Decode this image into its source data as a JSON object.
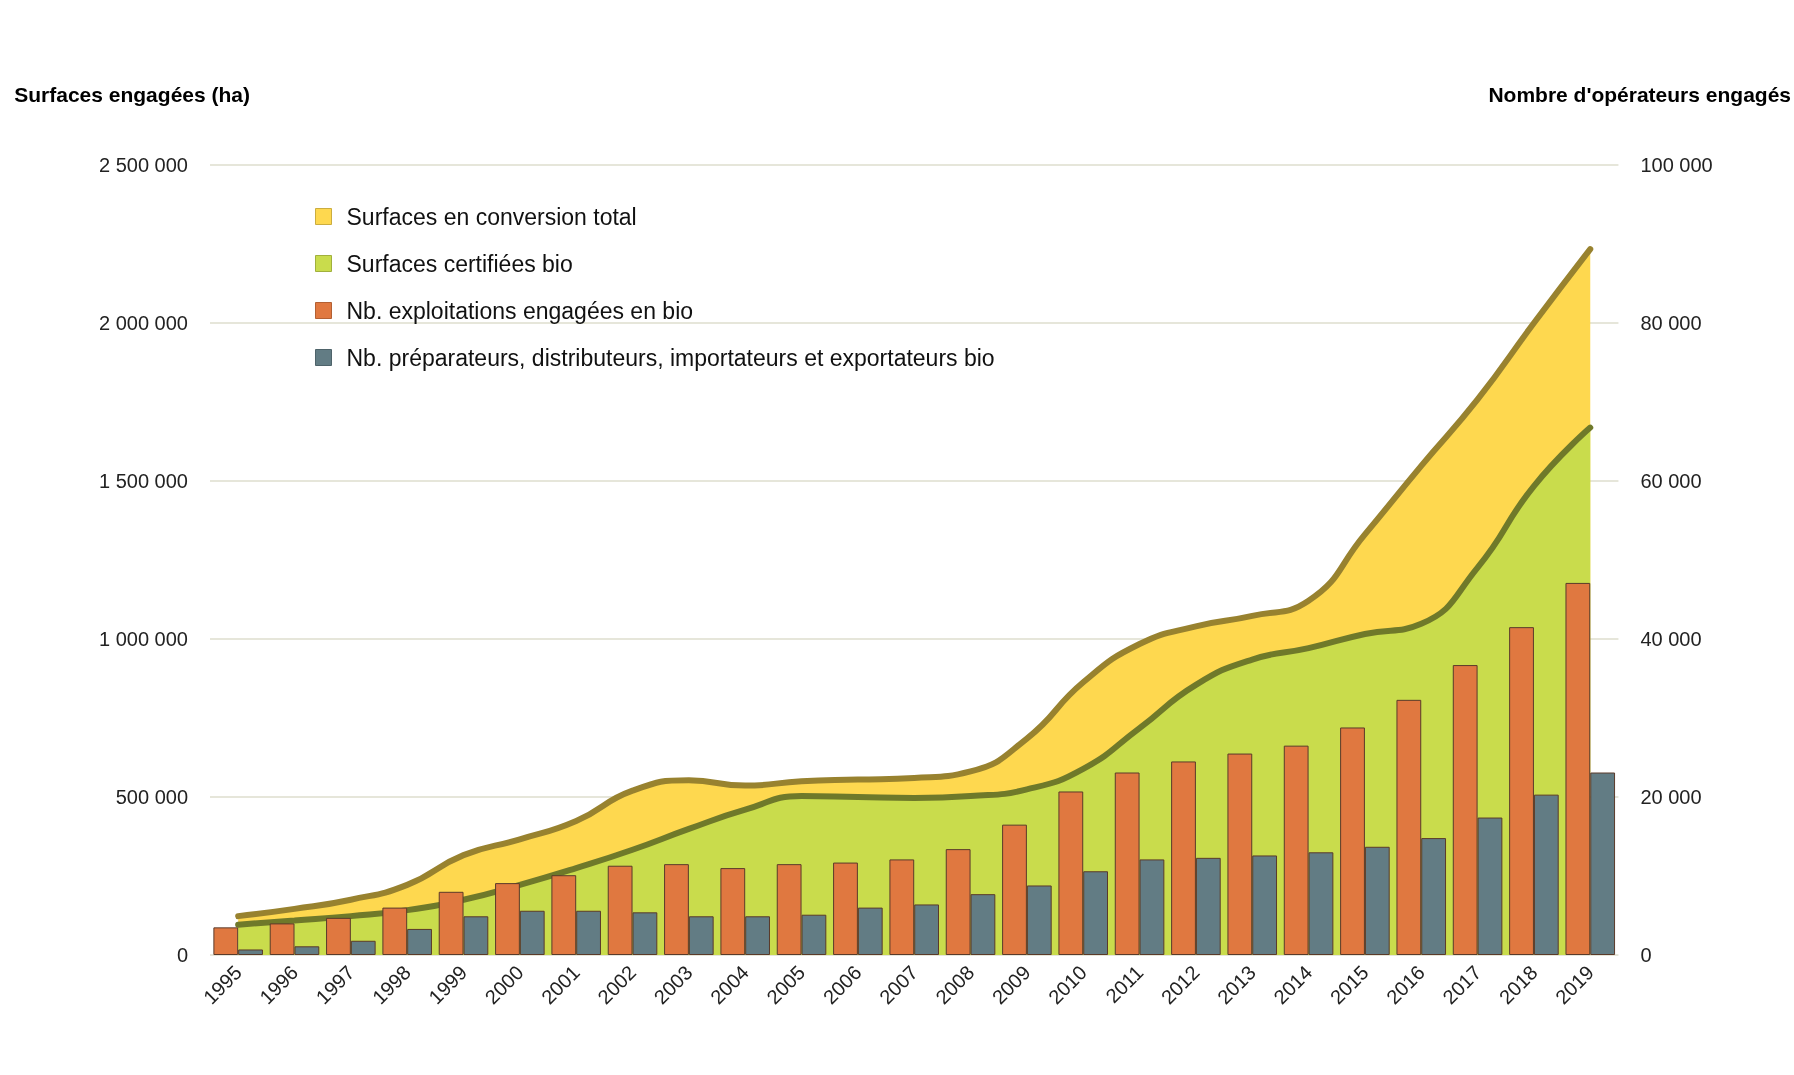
{
  "chart_data": {
    "type": "bar",
    "ylabel": "Surfaces engagées (ha)",
    "y2label": "Nombre d'opérateurs engagés",
    "categories": [
      "1995",
      "1996",
      "1997",
      "1998",
      "1999",
      "2000",
      "2001",
      "2002",
      "2003",
      "2004",
      "2005",
      "2006",
      "2007",
      "2008",
      "2009",
      "2010",
      "2011",
      "2012",
      "2013",
      "2014",
      "2015",
      "2016",
      "2017",
      "2018",
      "2019"
    ],
    "series": [
      {
        "name": "Surfaces en conversion total",
        "type": "area",
        "color": "#fed84f",
        "values": [
          123000,
          146000,
          175000,
          222000,
          316000,
          366000,
          424000,
          520000,
          553000,
          536000,
          550000,
          555000,
          560000,
          581000,
          685000,
          863000,
          984000,
          1040000,
          1073000,
          1121000,
          1331000,
          1548000,
          1758000,
          2000000,
          2234000
        ]
      },
      {
        "name": "Surfaces certifiées bio",
        "type": "area",
        "color": "#c9dc4c",
        "values": [
          96000,
          109000,
          123000,
          142000,
          175000,
          222000,
          275000,
          333000,
          399000,
          460000,
          503000,
          500000,
          497000,
          503000,
          524000,
          589000,
          718000,
          855000,
          935000,
          971000,
          1016000,
          1048000,
          1226000,
          1484000,
          1669000
        ]
      },
      {
        "name": "Nb. exploitations engagées en bio",
        "axis": "y2",
        "color": "#e07840",
        "values": [
          3500,
          4000,
          4700,
          6000,
          8000,
          9100,
          10100,
          11300,
          11500,
          11000,
          11500,
          11700,
          12100,
          13400,
          16500,
          20700,
          23100,
          24500,
          25500,
          26500,
          28800,
          32300,
          36700,
          41500,
          47100
        ]
      },
      {
        "name": "Nb. préparateurs, distributeurs, importateurs et exportateurs bio",
        "axis": "y2",
        "color": "#627c84",
        "values": [
          700,
          1100,
          1800,
          3300,
          4900,
          5600,
          5600,
          5400,
          4900,
          4900,
          5100,
          6000,
          6400,
          7700,
          8800,
          10600,
          12100,
          12300,
          12600,
          13000,
          13700,
          14800,
          17400,
          20300,
          23100
        ]
      }
    ],
    "ylim": [
      0,
      2500000
    ],
    "yticks": [
      {
        "value": 0,
        "label": "0"
      },
      {
        "value": 500000,
        "label": "500 000"
      },
      {
        "value": 1000000,
        "label": "1 000 000"
      },
      {
        "value": 1500000,
        "label": "1 500 000"
      },
      {
        "value": 2000000,
        "label": "2 000 000"
      },
      {
        "value": 2500000,
        "label": "2 500 000"
      }
    ],
    "y2lim": [
      0,
      100000
    ],
    "y2ticks": [
      {
        "value": 0,
        "label": "0"
      },
      {
        "value": 20000,
        "label": "20 000"
      },
      {
        "value": 40000,
        "label": "40 000"
      },
      {
        "value": 60000,
        "label": "60 000"
      },
      {
        "value": 80000,
        "label": "80 000"
      },
      {
        "value": 100000,
        "label": "100 000"
      }
    ],
    "grid": "y",
    "legend": "top left"
  }
}
